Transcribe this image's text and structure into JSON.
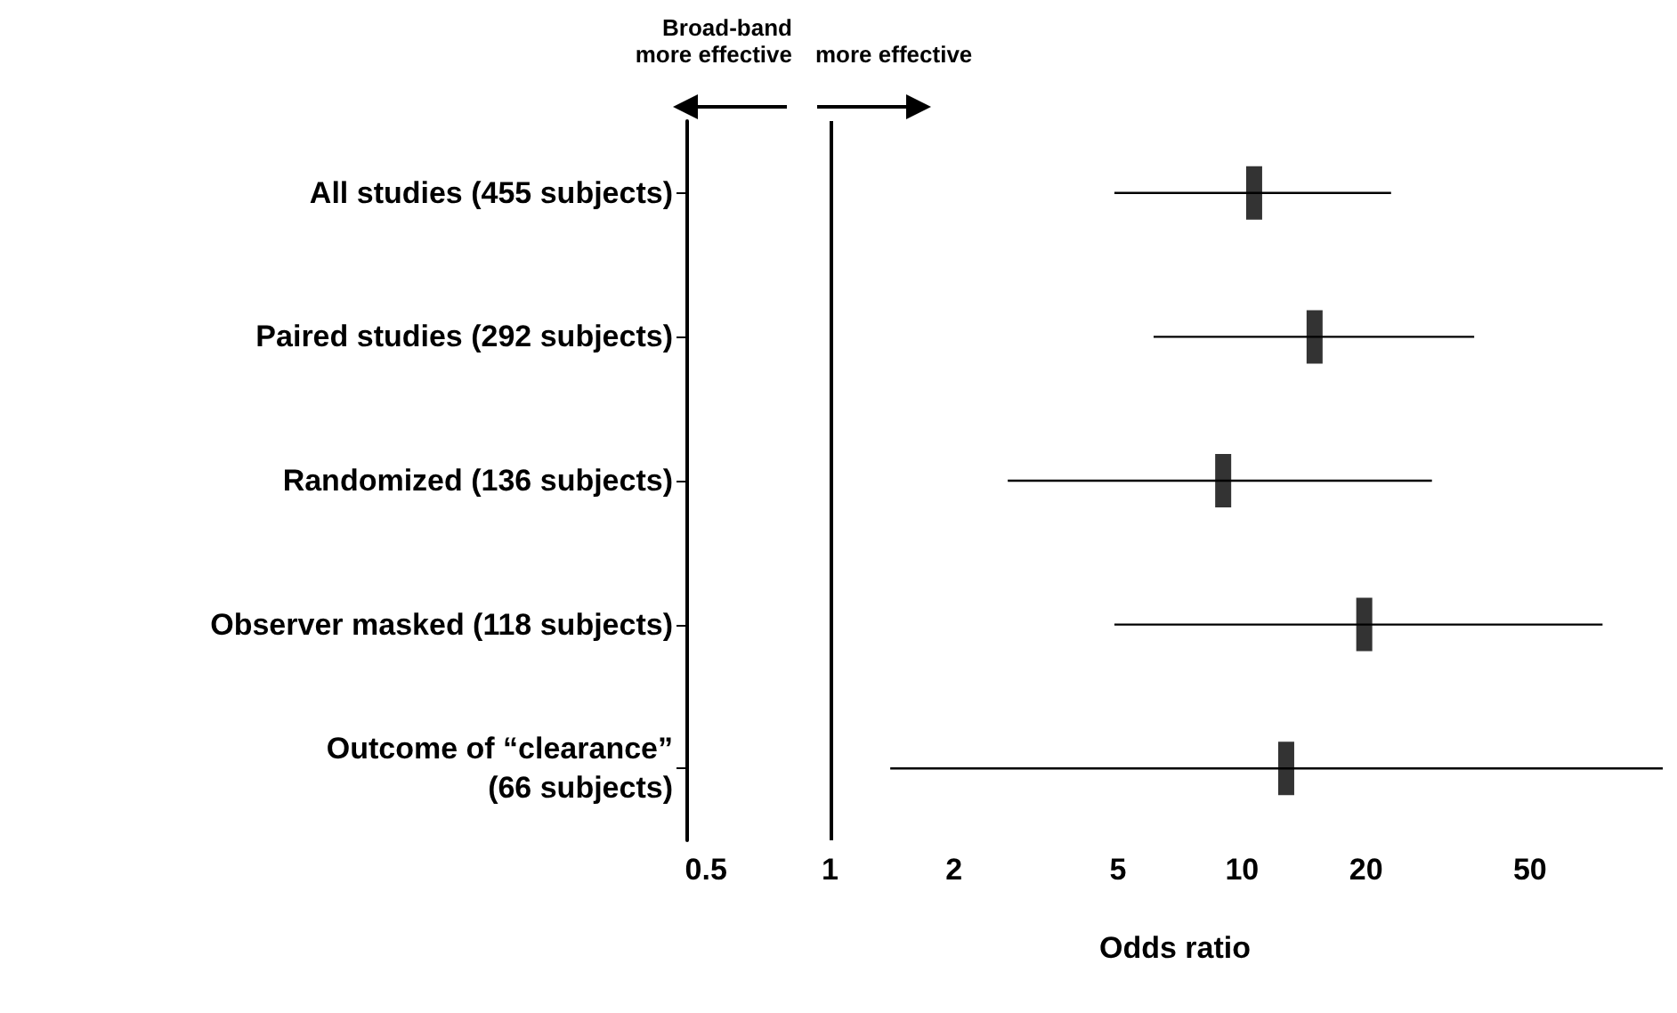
{
  "chart_data": {
    "type": "scatter",
    "orientation": "horizontal",
    "xlabel": "Odds ratio",
    "categories": [
      "All studies (455 subjects)",
      "Paired studies (292 subjects)",
      "Randomized (136 subjects)",
      "Observer masked (118 subjects)",
      "Outcome of “clearance”\n(66 subjects)"
    ],
    "values": [
      10.7,
      15,
      9,
      19.8,
      12.8
    ],
    "errors": [
      [
        4.9,
        23
      ],
      [
        6.1,
        36.6
      ],
      [
        2.7,
        28.9
      ],
      [
        4.9,
        75
      ],
      [
        1.4,
        105
      ]
    ],
    "color": "#000000",
    "log": "x",
    "xlim": [
      0.45,
      105
    ],
    "xticks": [
      0.5,
      1,
      2,
      5,
      10,
      20,
      50
    ],
    "grid": false,
    "ref_lines": [
      {
        "axis": "x",
        "value": 1,
        "color": "#000000"
      }
    ],
    "annotations": [
      "Broad-band\nmore effective",
      "more effective"
    ]
  }
}
